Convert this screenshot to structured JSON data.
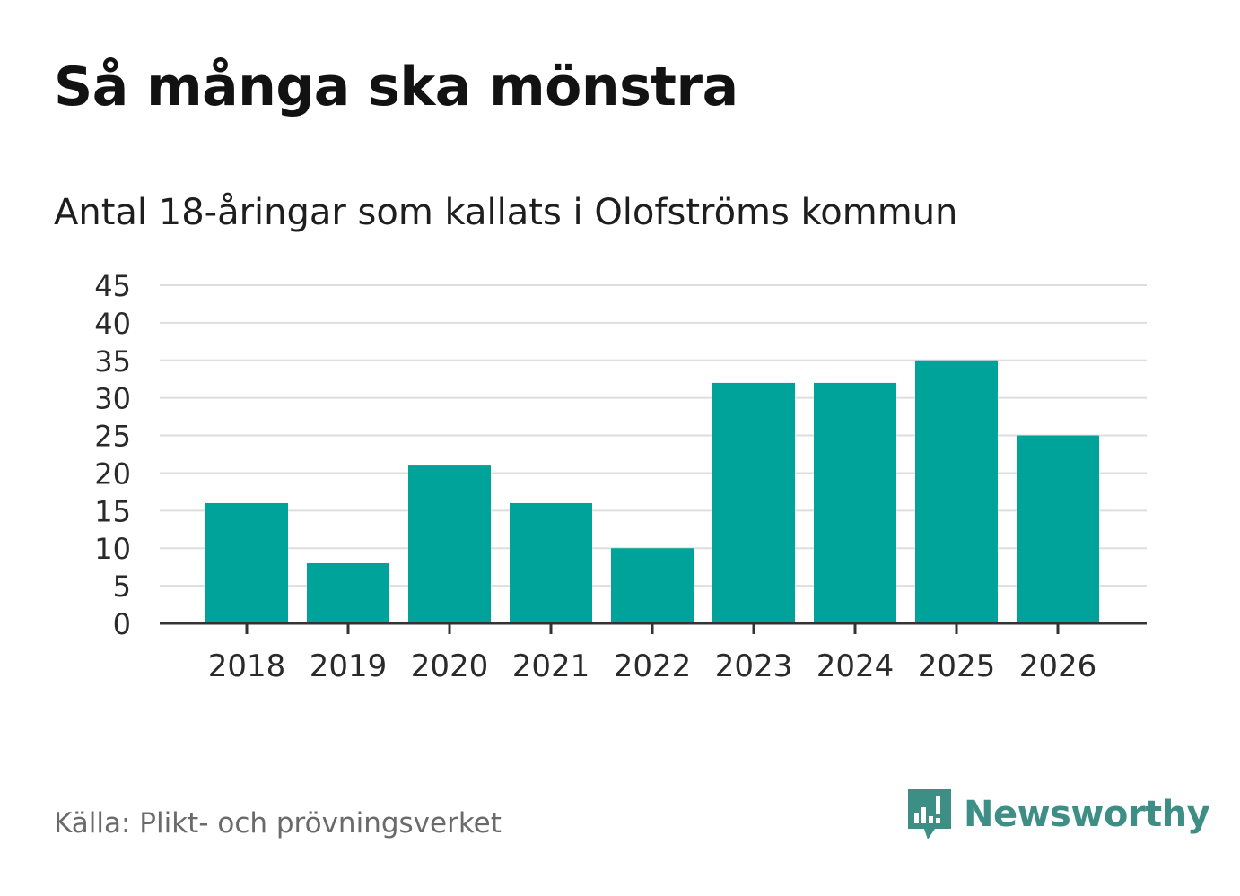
{
  "chart_data": {
    "type": "bar",
    "title": "Så många ska mönstra",
    "subtitle": "Antal 18-åringar som kallats i Olofströms kommun",
    "categories": [
      "2018",
      "2019",
      "2020",
      "2021",
      "2022",
      "2023",
      "2024",
      "2025",
      "2026"
    ],
    "values": [
      16,
      8,
      21,
      16,
      10,
      32,
      32,
      35,
      25
    ],
    "ylim": [
      0,
      45
    ],
    "yticks": [
      "0",
      "5",
      "10",
      "15",
      "20",
      "25",
      "30",
      "35",
      "40",
      "45"
    ],
    "xlabel": "",
    "ylabel": "",
    "grid": true,
    "bar_color": "#00a39a"
  },
  "footer": {
    "source": "Källa: Plikt- och prövningsverket",
    "brand": "Newsworthy",
    "brand_color": "#3d8f86"
  }
}
